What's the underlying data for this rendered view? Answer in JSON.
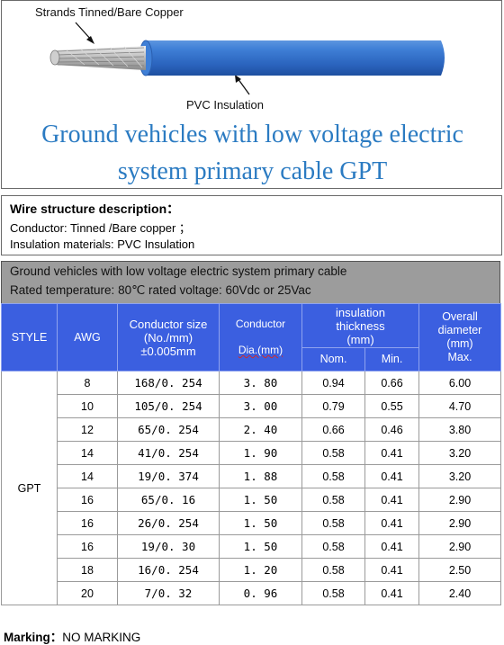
{
  "product": {
    "callout_strands": "Strands Tinned/Bare Copper",
    "callout_insulation": "PVC Insulation",
    "title_line1": "Ground vehicles with low voltage electric",
    "title_line2": "system primary cable GPT",
    "wire_color": "#2f6fc9"
  },
  "structure": {
    "heading": "Wire structure description：",
    "conductor": "Conductor: Tinned /Bare copper ；",
    "insulation": "Insulation materials: PVC Insulation"
  },
  "spec": {
    "title": "Ground vehicles with low voltage electric system primary cable",
    "ratings": "Rated temperature: 80℃    rated voltage: 60Vdc or 25Vac"
  },
  "table": {
    "headers": {
      "style": "STYLE",
      "awg": "AWG",
      "conductor_size": [
        "Conductor size",
        "(No./mm)",
        "±0.005mm"
      ],
      "conductor": "Conductor",
      "dia": "Dia.(mm)",
      "insulation": [
        "insulation",
        "thickness",
        "(mm)"
      ],
      "nom": "Nom.",
      "min": "Min.",
      "overall": [
        "Overall",
        "diameter",
        "(mm)",
        "Max."
      ]
    },
    "style_value": "GPT",
    "header_color": "#3b5fe0",
    "rows": [
      {
        "awg": "8",
        "size": "168/0. 254",
        "dia": "3. 80",
        "nom": "0.94",
        "min": "0.66",
        "max": "6.00"
      },
      {
        "awg": "10",
        "size": "105/0. 254",
        "dia": "3. 00",
        "nom": "0.79",
        "min": "0.55",
        "max": "4.70"
      },
      {
        "awg": "12",
        "size": "65/0. 254",
        "dia": "2. 40",
        "nom": "0.66",
        "min": "0.46",
        "max": "3.80"
      },
      {
        "awg": "14",
        "size": "41/0. 254",
        "dia": "1. 90",
        "nom": "0.58",
        "min": "0.41",
        "max": "3.20"
      },
      {
        "awg": "14",
        "size": "19/0. 374",
        "dia": "1. 88",
        "nom": "0.58",
        "min": "0.41",
        "max": "3.20"
      },
      {
        "awg": "16",
        "size": "65/0. 16",
        "dia": "1. 50",
        "nom": "0.58",
        "min": "0.41",
        "max": "2.90"
      },
      {
        "awg": "16",
        "size": "26/0. 254",
        "dia": "1. 50",
        "nom": "0.58",
        "min": "0.41",
        "max": "2.90"
      },
      {
        "awg": "16",
        "size": "19/0. 30",
        "dia": "1. 50",
        "nom": "0.58",
        "min": "0.41",
        "max": "2.90"
      },
      {
        "awg": "18",
        "size": "16/0. 254",
        "dia": "1. 20",
        "nom": "0.58",
        "min": "0.41",
        "max": "2.50"
      },
      {
        "awg": "20",
        "size": "7/0. 32",
        "dia": "0. 96",
        "nom": "0.58",
        "min": "0.41",
        "max": "2.40"
      }
    ]
  },
  "marking": {
    "label": "Marking：",
    "value": "NO MARKING"
  }
}
